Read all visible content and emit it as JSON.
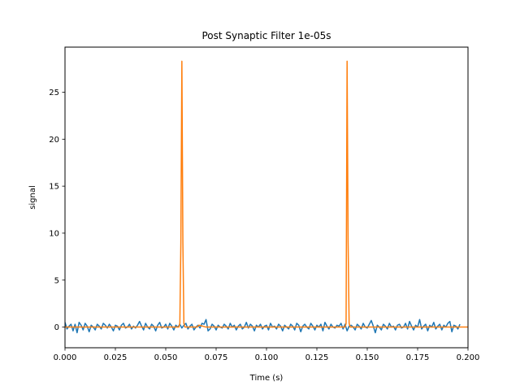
{
  "chart_data": {
    "type": "line",
    "title": "Post Synaptic Filter 1e-05s",
    "xlabel": "Time (s)",
    "ylabel": "signal",
    "xlim": [
      0.0,
      0.2
    ],
    "ylim": [
      -2.2,
      29.8
    ],
    "x_ticks": [
      0.0,
      0.025,
      0.05,
      0.075,
      0.1,
      0.125,
      0.15,
      0.175,
      0.2
    ],
    "x_tick_labels": [
      "0.000",
      "0.025",
      "0.050",
      "0.075",
      "0.100",
      "0.125",
      "0.150",
      "0.175",
      "0.200"
    ],
    "y_ticks": [
      0,
      5,
      10,
      15,
      20,
      25
    ],
    "y_tick_labels": [
      "0",
      "5",
      "10",
      "15",
      "20",
      "25"
    ],
    "grid": false,
    "legend": "none",
    "series": [
      {
        "color": "#1f77b4",
        "x_start": 0.0,
        "x_step": 0.001,
        "values": [
          0.5,
          -0.2,
          0.1,
          0.3,
          -0.4,
          0.3,
          -0.6,
          0.5,
          0.2,
          -0.3,
          0.4,
          0.1,
          -0.5,
          0.2,
          0.0,
          -0.3,
          0.3,
          0.1,
          -0.2,
          0.4,
          0.2,
          -0.1,
          0.3,
          0.0,
          -0.4,
          0.2,
          0.1,
          -0.3,
          0.2,
          0.4,
          -0.1,
          0.0,
          0.3,
          -0.2,
          0.1,
          -0.1,
          0.2,
          0.6,
          0.1,
          -0.3,
          0.4,
          0.0,
          -0.2,
          0.3,
          0.1,
          -0.4,
          0.2,
          0.5,
          -0.1,
          0.0,
          0.3,
          -0.2,
          0.4,
          0.1,
          -0.3,
          0.2,
          0.0,
          0.3,
          -0.1,
          0.2,
          0.4,
          -0.2,
          0.1,
          0.3,
          -0.3,
          0.0,
          0.2,
          -0.1,
          0.4,
          0.3,
          0.8,
          -0.4,
          -0.2,
          0.3,
          0.1,
          -0.3,
          0.2,
          0.0,
          -0.1,
          0.3,
          0.1,
          -0.2,
          0.4,
          0.0,
          0.2,
          -0.3,
          0.1,
          0.3,
          -0.2,
          0.0,
          0.5,
          -0.1,
          0.3,
          0.1,
          -0.4,
          0.2,
          0.0,
          0.3,
          -0.2,
          0.1,
          0.2,
          -0.3,
          0.4,
          0.0,
          0.1,
          -0.2,
          0.3,
          0.1,
          -0.4,
          0.2,
          0.0,
          -0.2,
          0.3,
          0.1,
          -0.3,
          0.4,
          0.2,
          -0.5,
          0.1,
          0.3,
          0.0,
          -0.2,
          0.4,
          0.1,
          -0.3,
          0.2,
          0.0,
          0.3,
          -0.4,
          0.5,
          0.1,
          -0.2,
          0.3,
          0.0,
          -0.1,
          0.2,
          0.1,
          0.4,
          -0.2,
          0.3,
          -0.4,
          0.1,
          0.2,
          0.0,
          -0.3,
          0.3,
          0.1,
          -0.2,
          0.4,
          0.0,
          -0.1,
          0.3,
          0.7,
          0.1,
          -0.6,
          0.2,
          0.0,
          -0.3,
          0.3,
          0.1,
          -0.2,
          0.4,
          0.0,
          0.1,
          -0.3,
          0.2,
          0.3,
          -0.1,
          0.0,
          0.4,
          -0.2,
          0.6,
          0.1,
          -0.3,
          0.2,
          0.0,
          0.8,
          -0.2,
          0.1,
          0.3,
          -0.4,
          0.2,
          0.0,
          0.5,
          -0.2,
          0.1,
          0.3,
          -0.3,
          0.2,
          0.0,
          0.4,
          0.6,
          -0.5,
          0.2,
          0.1,
          -0.2,
          0.3
        ]
      },
      {
        "color": "#ff7f0e",
        "points": [
          [
            0.0,
            0.0
          ],
          [
            0.0565,
            0.0
          ],
          [
            0.057,
            0.4
          ],
          [
            0.0575,
            9.0
          ],
          [
            0.058,
            28.3
          ],
          [
            0.0585,
            9.0
          ],
          [
            0.059,
            0.4
          ],
          [
            0.0595,
            0.0
          ],
          [
            0.0655,
            0.0
          ],
          [
            0.0665,
            0.2
          ],
          [
            0.07,
            0.0
          ],
          [
            0.139,
            0.0
          ],
          [
            0.1395,
            0.4
          ],
          [
            0.14,
            28.3
          ],
          [
            0.1405,
            9.0
          ],
          [
            0.141,
            0.4
          ],
          [
            0.1415,
            0.0
          ],
          [
            0.2,
            0.0
          ]
        ]
      }
    ]
  }
}
